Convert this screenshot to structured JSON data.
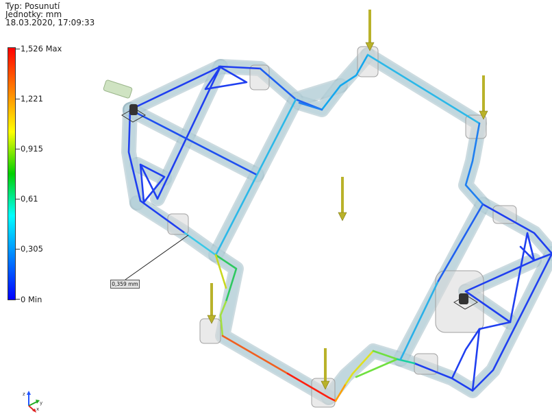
{
  "header": {
    "type_line": "Typ: Posunutí",
    "units_line": "Jednotky: mm",
    "timestamp": "18.03.2020, 17:09:33"
  },
  "legend": {
    "max_label": "1,526 Max",
    "ticks": [
      "1,221",
      "0,915",
      "0,61",
      "0,305"
    ],
    "min_label": "0 Min",
    "gradient": [
      "#ff0000",
      "#ff8000",
      "#ffff00",
      "#00d000",
      "#00ffff",
      "#0080ff",
      "#0000ff"
    ]
  },
  "probe": {
    "value_label": "0,359 mm"
  },
  "colors": {
    "beam_fill": "#b9d4dc",
    "beam_stroke": "#8fb0bb",
    "load_arrow": "#b9b22a",
    "fixed_support": "#333333"
  },
  "axes": {
    "z": "z",
    "y": "y",
    "x": "x"
  }
}
